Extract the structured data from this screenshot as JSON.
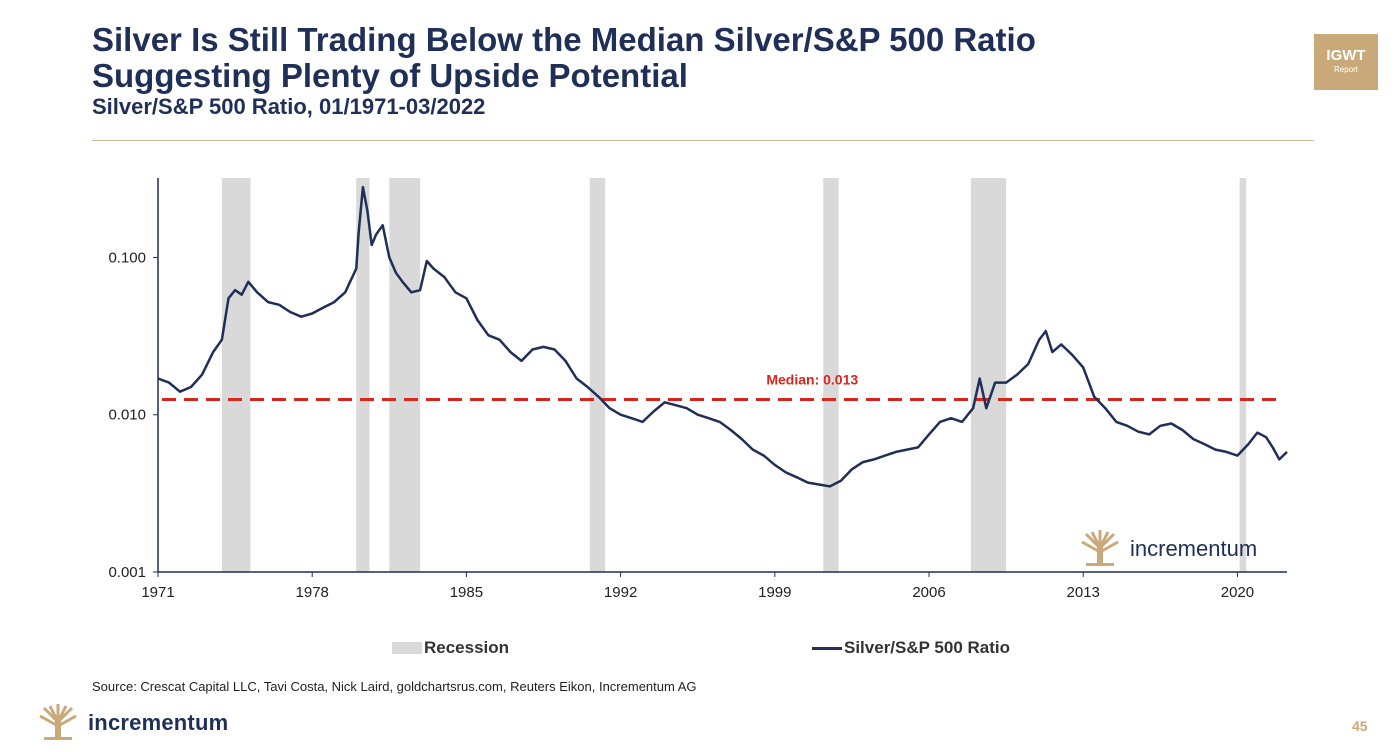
{
  "header": {
    "title_line1": "Silver Is Still Trading Below the Median Silver/S&P 500 Ratio",
    "title_line2": "Suggesting Plenty of Upside Potential",
    "subtitle": "Silver/S&P 500 Ratio, 01/1971-03/2022",
    "badge_main": "IGWT",
    "badge_sub": "Report"
  },
  "chart_data": {
    "type": "line",
    "yscale": "log",
    "ylim": [
      0.001,
      0.32
    ],
    "xlim": [
      1971.0,
      2022.25
    ],
    "x_ticks": [
      "1971",
      "1978",
      "1985",
      "1992",
      "1999",
      "2006",
      "2013",
      "2020"
    ],
    "y_ticks": [
      "0.001",
      "0.010",
      "0.100"
    ],
    "median": {
      "value": 0.0125,
      "label": "Median: 0.013"
    },
    "recessions": [
      [
        1973.9,
        1975.2
      ],
      [
        1980.0,
        1980.6
      ],
      [
        1981.5,
        1982.9
      ],
      [
        1990.6,
        1991.3
      ],
      [
        2001.2,
        2001.9
      ],
      [
        2007.9,
        2009.5
      ],
      [
        2020.1,
        2020.4
      ]
    ],
    "series": [
      {
        "name": "Silver/S&P 500 Ratio",
        "color": "#1f2f57",
        "points": [
          [
            1971.0,
            0.017
          ],
          [
            1971.5,
            0.016
          ],
          [
            1972.0,
            0.014
          ],
          [
            1972.5,
            0.015
          ],
          [
            1973.0,
            0.018
          ],
          [
            1973.5,
            0.025
          ],
          [
            1973.9,
            0.03
          ],
          [
            1974.2,
            0.055
          ],
          [
            1974.5,
            0.062
          ],
          [
            1974.8,
            0.058
          ],
          [
            1975.1,
            0.07
          ],
          [
            1975.5,
            0.06
          ],
          [
            1976.0,
            0.052
          ],
          [
            1976.5,
            0.05
          ],
          [
            1977.0,
            0.045
          ],
          [
            1977.5,
            0.042
          ],
          [
            1978.0,
            0.044
          ],
          [
            1978.5,
            0.048
          ],
          [
            1979.0,
            0.052
          ],
          [
            1979.5,
            0.06
          ],
          [
            1980.0,
            0.085
          ],
          [
            1980.1,
            0.14
          ],
          [
            1980.3,
            0.28
          ],
          [
            1980.5,
            0.2
          ],
          [
            1980.7,
            0.12
          ],
          [
            1980.9,
            0.14
          ],
          [
            1981.2,
            0.16
          ],
          [
            1981.5,
            0.1
          ],
          [
            1981.8,
            0.08
          ],
          [
            1982.1,
            0.07
          ],
          [
            1982.5,
            0.06
          ],
          [
            1982.9,
            0.062
          ],
          [
            1983.2,
            0.095
          ],
          [
            1983.5,
            0.085
          ],
          [
            1984.0,
            0.075
          ],
          [
            1984.5,
            0.06
          ],
          [
            1985.0,
            0.055
          ],
          [
            1985.5,
            0.04
          ],
          [
            1986.0,
            0.032
          ],
          [
            1986.5,
            0.03
          ],
          [
            1987.0,
            0.025
          ],
          [
            1987.5,
            0.022
          ],
          [
            1988.0,
            0.026
          ],
          [
            1988.5,
            0.027
          ],
          [
            1989.0,
            0.026
          ],
          [
            1989.5,
            0.022
          ],
          [
            1990.0,
            0.017
          ],
          [
            1990.5,
            0.015
          ],
          [
            1991.0,
            0.013
          ],
          [
            1991.5,
            0.011
          ],
          [
            1992.0,
            0.01
          ],
          [
            1992.5,
            0.0095
          ],
          [
            1993.0,
            0.009
          ],
          [
            1993.5,
            0.0105
          ],
          [
            1994.0,
            0.012
          ],
          [
            1994.5,
            0.0115
          ],
          [
            1995.0,
            0.011
          ],
          [
            1995.5,
            0.01
          ],
          [
            1996.0,
            0.0095
          ],
          [
            1996.5,
            0.009
          ],
          [
            1997.0,
            0.008
          ],
          [
            1997.5,
            0.007
          ],
          [
            1998.0,
            0.006
          ],
          [
            1998.5,
            0.0055
          ],
          [
            1999.0,
            0.0048
          ],
          [
            1999.5,
            0.0043
          ],
          [
            2000.0,
            0.004
          ],
          [
            2000.5,
            0.0037
          ],
          [
            2001.0,
            0.0036
          ],
          [
            2001.5,
            0.0035
          ],
          [
            2002.0,
            0.0038
          ],
          [
            2002.5,
            0.0045
          ],
          [
            2003.0,
            0.005
          ],
          [
            2003.5,
            0.0052
          ],
          [
            2004.0,
            0.0055
          ],
          [
            2004.5,
            0.0058
          ],
          [
            2005.0,
            0.006
          ],
          [
            2005.5,
            0.0062
          ],
          [
            2006.0,
            0.0075
          ],
          [
            2006.5,
            0.009
          ],
          [
            2007.0,
            0.0095
          ],
          [
            2007.5,
            0.009
          ],
          [
            2008.0,
            0.011
          ],
          [
            2008.3,
            0.017
          ],
          [
            2008.6,
            0.011
          ],
          [
            2009.0,
            0.016
          ],
          [
            2009.5,
            0.016
          ],
          [
            2010.0,
            0.018
          ],
          [
            2010.5,
            0.021
          ],
          [
            2011.0,
            0.03
          ],
          [
            2011.3,
            0.034
          ],
          [
            2011.6,
            0.025
          ],
          [
            2012.0,
            0.028
          ],
          [
            2012.5,
            0.024
          ],
          [
            2013.0,
            0.02
          ],
          [
            2013.5,
            0.013
          ],
          [
            2014.0,
            0.011
          ],
          [
            2014.5,
            0.009
          ],
          [
            2015.0,
            0.0085
          ],
          [
            2015.5,
            0.0078
          ],
          [
            2016.0,
            0.0075
          ],
          [
            2016.5,
            0.0085
          ],
          [
            2017.0,
            0.0088
          ],
          [
            2017.5,
            0.008
          ],
          [
            2018.0,
            0.007
          ],
          [
            2018.5,
            0.0065
          ],
          [
            2019.0,
            0.006
          ],
          [
            2019.5,
            0.0058
          ],
          [
            2020.0,
            0.0055
          ],
          [
            2020.5,
            0.0065
          ],
          [
            2020.9,
            0.0077
          ],
          [
            2021.3,
            0.0072
          ],
          [
            2021.6,
            0.0062
          ],
          [
            2021.9,
            0.0052
          ],
          [
            2022.25,
            0.0058
          ]
        ]
      }
    ],
    "legend": [
      {
        "label": "Recession",
        "kind": "band",
        "color": "#d9d9d9"
      },
      {
        "label": "Silver/S&P 500 Ratio",
        "kind": "line",
        "color": "#1f2f57"
      }
    ],
    "legend_position": "bottom",
    "grid": false
  },
  "watermark_word": "incrementum",
  "footer": {
    "source": "Source: Crescat Capital LLC, Tavi Costa, Nick Laird, goldchartsrus.com, Reuters Eikon, Incrementum AG",
    "brand": "incrementum",
    "page_number": "45"
  },
  "colors": {
    "navy": "#1f2f57",
    "gold": "#c9a97a",
    "median_red": "#d7261e",
    "recession_gray": "#d9d9d9"
  }
}
